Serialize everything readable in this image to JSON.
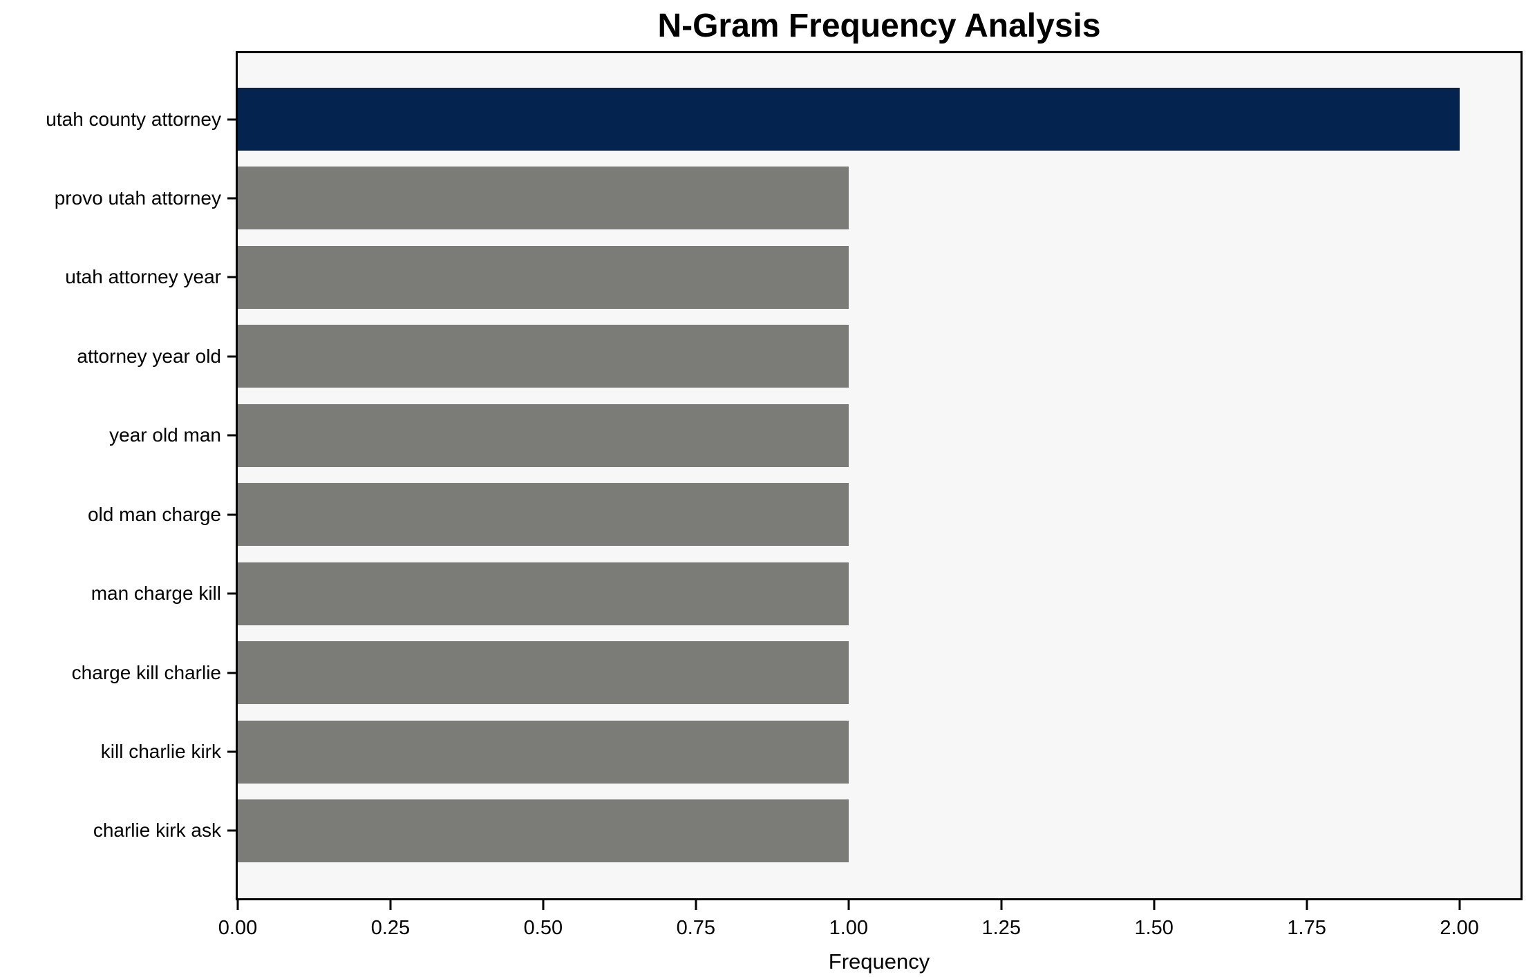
{
  "chart_data": {
    "type": "bar",
    "orientation": "horizontal",
    "title": "N-Gram Frequency Analysis",
    "xlabel": "Frequency",
    "ylabel": "",
    "categories": [
      "utah county attorney",
      "provo utah attorney",
      "utah attorney year",
      "attorney year old",
      "year old man",
      "old man charge",
      "man charge kill",
      "charge kill charlie",
      "kill charlie kirk",
      "charlie kirk ask"
    ],
    "values": [
      2,
      1,
      1,
      1,
      1,
      1,
      1,
      1,
      1,
      1
    ],
    "xlim": [
      0,
      2.1
    ],
    "x_ticks": [
      0.0,
      0.25,
      0.5,
      0.75,
      1.0,
      1.25,
      1.5,
      1.75,
      2.0
    ],
    "x_tick_labels": [
      "0.00",
      "0.25",
      "0.50",
      "0.75",
      "1.00",
      "1.25",
      "1.50",
      "1.75",
      "2.00"
    ],
    "bar_colors": [
      "#04234e",
      "#7b7b78",
      "#7b7b78",
      "#7b7b78",
      "#7b7b78",
      "#7b7b78",
      "#7b7b78",
      "#7b7b78",
      "#7b7b78",
      "#7b7b78"
    ],
    "grid": false,
    "legend": null,
    "colors": {
      "highlight_bar": "#04234e",
      "default_bar": "#7b7b78",
      "plot_background": "#f7f7f7",
      "figure_background": "#ffffff",
      "spine": "#000000",
      "text": "#000000"
    }
  }
}
